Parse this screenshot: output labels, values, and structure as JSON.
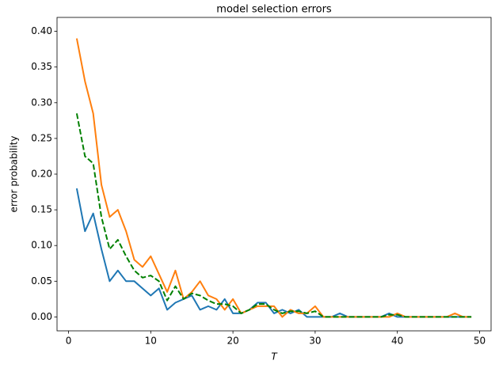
{
  "chart_data": {
    "type": "line",
    "title": "model selection errors",
    "xlabel": "T",
    "ylabel": "error probability",
    "x": [
      1,
      2,
      3,
      4,
      5,
      6,
      7,
      8,
      9,
      10,
      11,
      12,
      13,
      14,
      15,
      16,
      17,
      18,
      19,
      20,
      21,
      22,
      23,
      24,
      25,
      26,
      27,
      28,
      29,
      30,
      31,
      32,
      33,
      34,
      35,
      36,
      37,
      38,
      39,
      40,
      41,
      42,
      43,
      44,
      45,
      46,
      47,
      48,
      49
    ],
    "series": [
      {
        "color": "#1f77b4",
        "linestyle": "solid",
        "values": [
          0.18,
          0.12,
          0.145,
          0.095,
          0.05,
          0.065,
          0.05,
          0.05,
          0.04,
          0.03,
          0.04,
          0.01,
          0.02,
          0.025,
          0.03,
          0.01,
          0.015,
          0.01,
          0.025,
          0.005,
          0.005,
          0.01,
          0.02,
          0.02,
          0.005,
          0.01,
          0.005,
          0.01,
          0,
          0,
          0,
          0,
          0.005,
          0,
          0,
          0,
          0,
          0,
          0.005,
          0,
          0,
          0,
          0,
          0,
          0,
          0,
          0,
          0,
          0
        ]
      },
      {
        "color": "#ff7f0e",
        "linestyle": "solid",
        "values": [
          0.39,
          0.33,
          0.285,
          0.185,
          0.14,
          0.15,
          0.12,
          0.08,
          0.07,
          0.085,
          0.06,
          0.035,
          0.065,
          0.025,
          0.035,
          0.05,
          0.03,
          0.025,
          0.01,
          0.025,
          0.005,
          0.01,
          0.015,
          0.015,
          0.015,
          0,
          0.01,
          0.005,
          0.005,
          0.015,
          0,
          0,
          0,
          0,
          0,
          0,
          0,
          0,
          0,
          0.005,
          0,
          0,
          0,
          0,
          0,
          0,
          0.005,
          0,
          0
        ]
      },
      {
        "color": "#008000",
        "linestyle": "dashed",
        "values": [
          0.285,
          0.225,
          0.215,
          0.14,
          0.095,
          0.108,
          0.085,
          0.065,
          0.055,
          0.058,
          0.05,
          0.023,
          0.043,
          0.025,
          0.033,
          0.03,
          0.023,
          0.018,
          0.018,
          0.015,
          0.005,
          0.01,
          0.018,
          0.018,
          0.01,
          0.005,
          0.008,
          0.008,
          0.005,
          0.008,
          0,
          0,
          0,
          0,
          0,
          0,
          0,
          0,
          0.003,
          0.003,
          0,
          0,
          0,
          0,
          0,
          0,
          0,
          0,
          0
        ]
      }
    ],
    "xlim": [
      -1.4,
      51.4
    ],
    "ylim": [
      -0.0195,
      0.4195
    ],
    "xticks": [
      0,
      10,
      20,
      30,
      40,
      50
    ],
    "yticks": [
      {
        "value": 0,
        "label": "0.00"
      },
      {
        "value": 0.05,
        "label": "0.05"
      },
      {
        "value": 0.1,
        "label": "0.10"
      },
      {
        "value": 0.15,
        "label": "0.15"
      },
      {
        "value": 0.2,
        "label": "0.20"
      },
      {
        "value": 0.25,
        "label": "0.25"
      },
      {
        "value": 0.3,
        "label": "0.30"
      },
      {
        "value": 0.35,
        "label": "0.35"
      },
      {
        "value": 0.4,
        "label": "0.40"
      }
    ]
  }
}
